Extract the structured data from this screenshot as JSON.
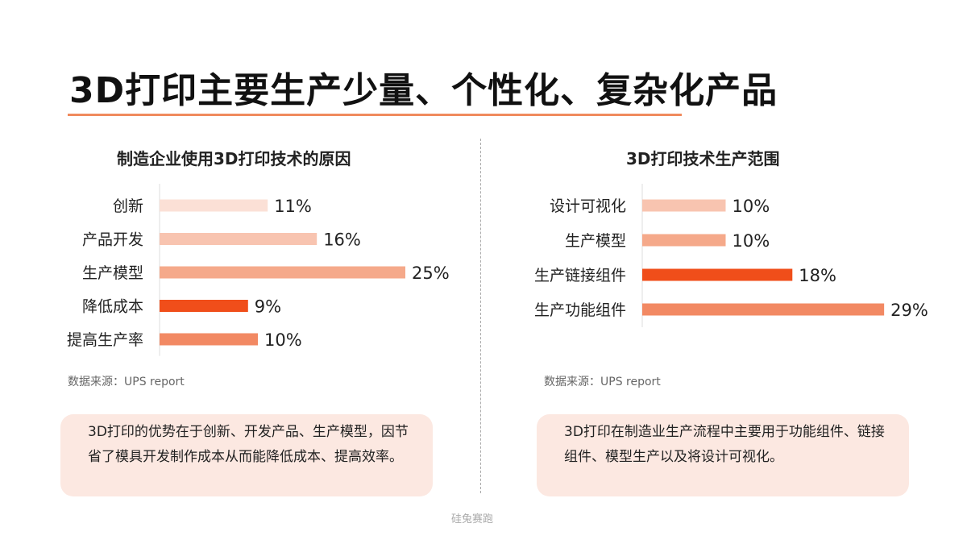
{
  "slide": {
    "title": "3D打印主要生产少量、个性化、复杂化产品",
    "watermark": "硅兔赛跑"
  },
  "colors": {
    "accent_line": "#f08a5d",
    "note_bg": "#fce8e1",
    "highlight_bar": "#f04e1a"
  },
  "left": {
    "source": "数据来源：UPS report",
    "note": "3D打印的优势在于创新、开发产品、生产模型，因节省了模具开发制作成本从而能降低成本、提高效率。"
  },
  "right": {
    "source": "数据来源：UPS report",
    "note": "3D打印在制造业生产流程中主要用于功能组件、链接组件、模型生产以及将设计可视化。"
  },
  "chart_data": [
    {
      "type": "bar",
      "orientation": "horizontal",
      "title": "制造企业使用3D打印技术的原因",
      "categories": [
        "创新",
        "产品开发",
        "生产模型",
        "降低成本",
        "提高生产率"
      ],
      "values": [
        11,
        16,
        25,
        9,
        10
      ],
      "labels": [
        "11%",
        "16%",
        "25%",
        "9%",
        "10%"
      ],
      "colors": [
        "#fbe0d6",
        "#f8c4b0",
        "#f5a98a",
        "#f04e1a",
        "#f28963"
      ],
      "grid": false,
      "legend": "none"
    },
    {
      "type": "bar",
      "orientation": "horizontal",
      "title": "3D打印技术生产范围",
      "categories": [
        "设计可视化",
        "生产模型",
        "生产链接组件",
        "生产功能组件"
      ],
      "values": [
        10,
        10,
        18,
        29
      ],
      "labels": [
        "10%",
        "10%",
        "18%",
        "29%"
      ],
      "colors": [
        "#f8c4b0",
        "#f5a98a",
        "#f04e1a",
        "#f28963"
      ],
      "grid": false,
      "legend": "none"
    }
  ]
}
